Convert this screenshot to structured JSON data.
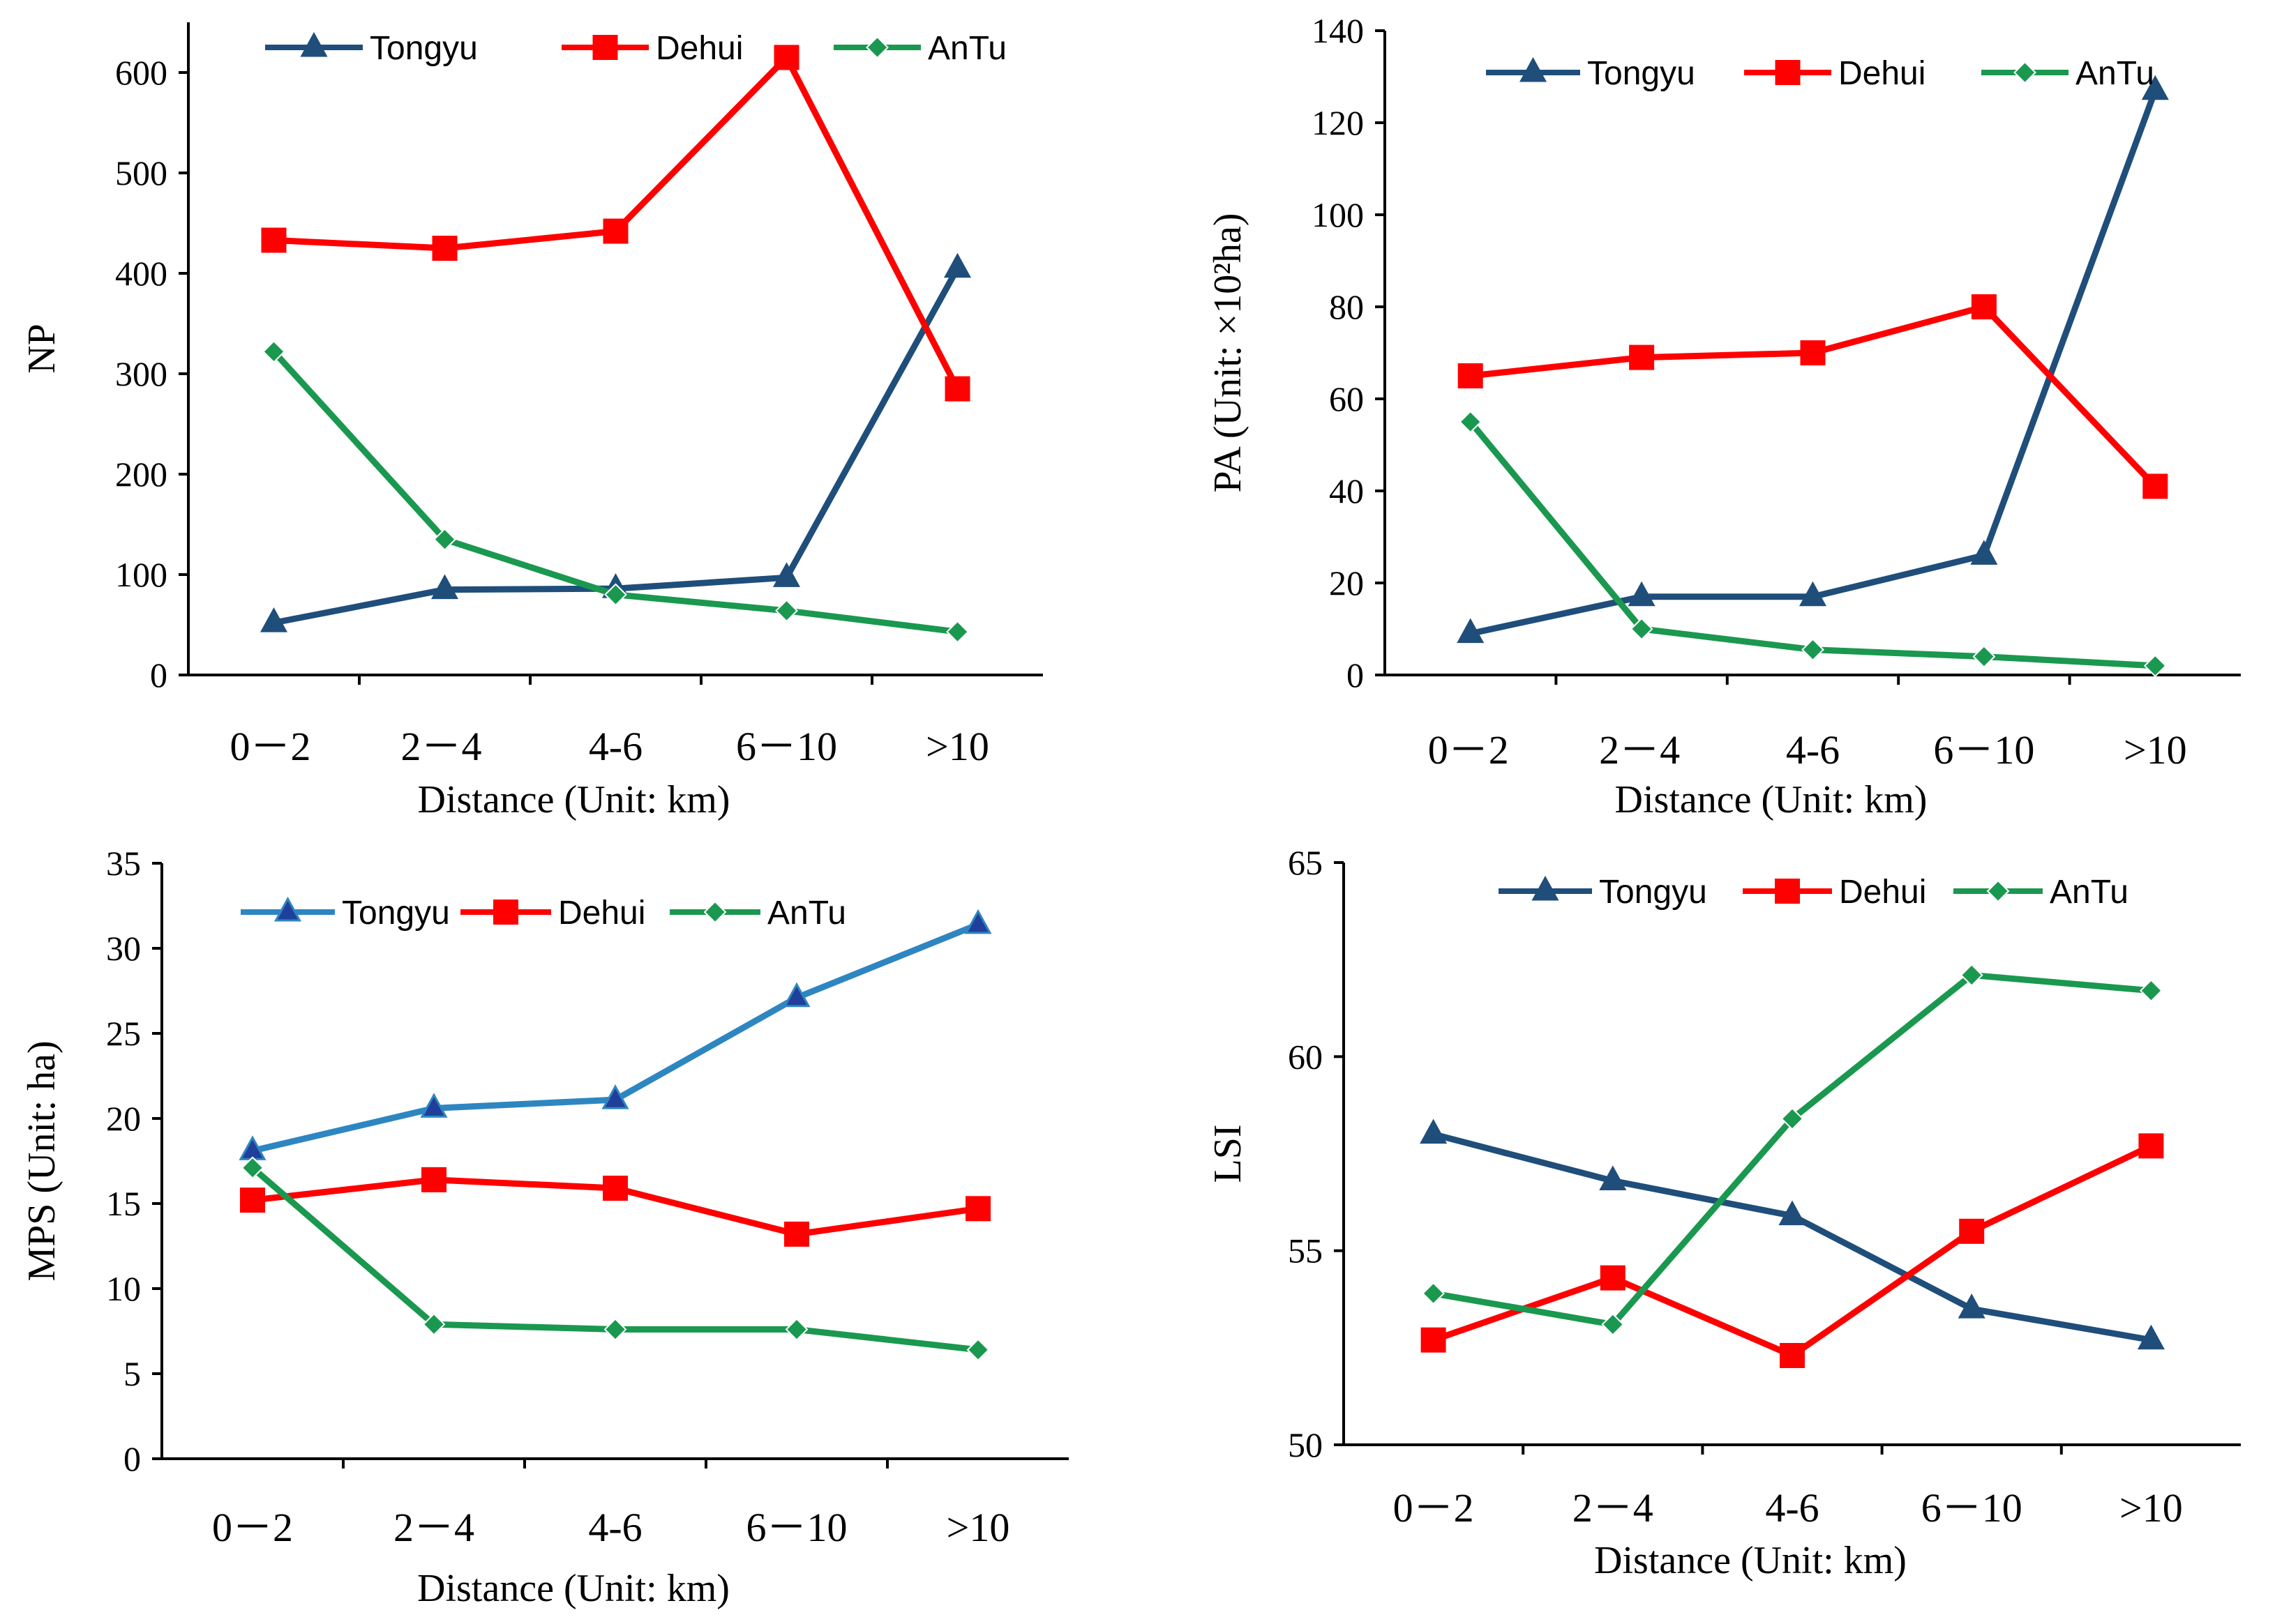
{
  "colors": {
    "tongyu": "#1f4e7a",
    "tongyu_light": "#2e86c1",
    "dehui": "#ff0000",
    "antu": "#1a9850",
    "axis": "#000000"
  },
  "chart_data": [
    {
      "id": "np",
      "type": "line",
      "title": "",
      "xlabel": "Distance (Unit:  km)",
      "ylabel": "NP",
      "categories": [
        "0－2",
        "2－4",
        "4-6",
        "6－10",
        ">10"
      ],
      "ylim": [
        0,
        650
      ],
      "yticks": [
        0,
        100,
        200,
        300,
        400,
        500,
        600
      ],
      "legend_position": "top",
      "series": [
        {
          "name": "Tongyu",
          "key": "tongyu",
          "marker": "triangle",
          "values": [
            52,
            85,
            86,
            97,
            405
          ]
        },
        {
          "name": "Dehui",
          "key": "dehui",
          "marker": "square",
          "values": [
            433,
            425,
            442,
            615,
            285
          ]
        },
        {
          "name": "AnTu",
          "key": "antu",
          "marker": "diamond",
          "values": [
            322,
            135,
            80,
            64,
            43
          ]
        }
      ]
    },
    {
      "id": "pa",
      "type": "line",
      "title": "",
      "xlabel": "Distance (Unit:  km)",
      "ylabel": "PA (Unit: ×10²ha)",
      "categories": [
        "0－2",
        "2－4",
        "4-6",
        "6－10",
        ">10"
      ],
      "ylim": [
        0,
        140
      ],
      "yticks": [
        0,
        20,
        40,
        60,
        80,
        100,
        120,
        140
      ],
      "legend_position": "top",
      "series": [
        {
          "name": "Tongyu",
          "key": "tongyu",
          "marker": "triangle",
          "values": [
            9,
            17,
            17,
            26,
            127
          ]
        },
        {
          "name": "Dehui",
          "key": "dehui",
          "marker": "square",
          "values": [
            65,
            69,
            70,
            80,
            41
          ]
        },
        {
          "name": "AnTu",
          "key": "antu",
          "marker": "diamond",
          "values": [
            55,
            10,
            5.5,
            4,
            2
          ]
        }
      ]
    },
    {
      "id": "mps",
      "type": "line",
      "title": "",
      "xlabel": "Distance (Unit:  km)",
      "ylabel": "MPS (Unit: ha)",
      "categories": [
        "0－2",
        "2－4",
        "4-6",
        "6－10",
        ">10"
      ],
      "ylim": [
        0,
        35
      ],
      "yticks": [
        0,
        5,
        10,
        15,
        20,
        25,
        30,
        35
      ],
      "legend_position": "top",
      "series": [
        {
          "name": "Tongyu",
          "key": "tongyu_light",
          "marker": "triangle",
          "values": [
            18.1,
            20.6,
            21.1,
            27.1,
            31.4
          ]
        },
        {
          "name": "Dehui",
          "key": "dehui",
          "marker": "square",
          "values": [
            15.2,
            16.4,
            15.9,
            13.2,
            14.7
          ]
        },
        {
          "name": "AnTu",
          "key": "antu",
          "marker": "diamond",
          "values": [
            17.1,
            7.9,
            7.6,
            7.6,
            6.4
          ]
        }
      ]
    },
    {
      "id": "lsi",
      "type": "line",
      "title": "",
      "xlabel": "Distance (Unit:  km)",
      "ylabel": "LSI",
      "categories": [
        "0－2",
        "2－4",
        "4-6",
        "6－10",
        ">10"
      ],
      "ylim": [
        50,
        65
      ],
      "yticks": [
        50,
        55,
        60,
        65
      ],
      "legend_position": "top",
      "series": [
        {
          "name": "Tongyu",
          "key": "tongyu",
          "marker": "triangle",
          "values": [
            58.0,
            56.8,
            55.9,
            53.5,
            52.7
          ]
        },
        {
          "name": "Dehui",
          "key": "dehui",
          "marker": "square",
          "values": [
            52.7,
            54.3,
            52.3,
            55.5,
            57.7
          ]
        },
        {
          "name": "AnTu",
          "key": "antu",
          "marker": "diamond",
          "values": [
            53.9,
            53.1,
            58.4,
            62.1,
            61.7
          ]
        }
      ]
    }
  ]
}
